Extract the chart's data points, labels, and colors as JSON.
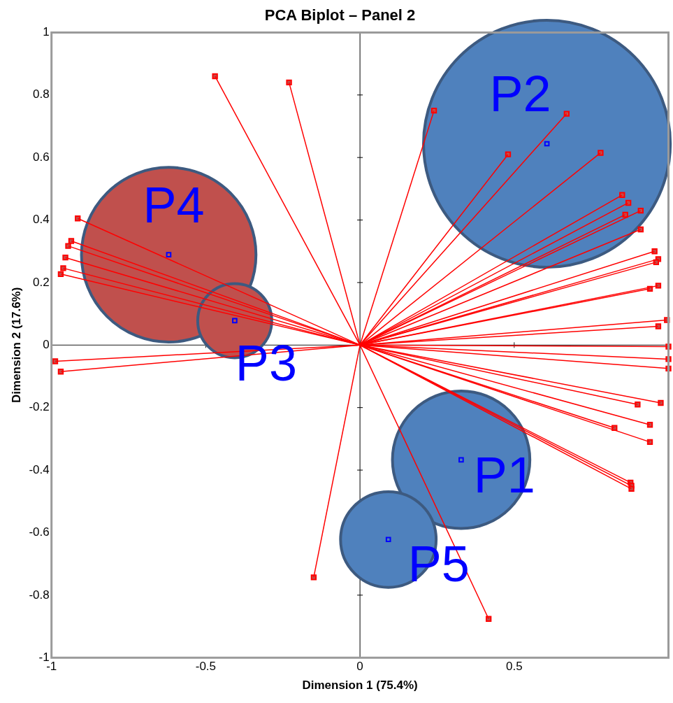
{
  "chart_data": {
    "type": "scatter",
    "title": "PCA Biplot – Panel 2",
    "xlabel": "Dimension 1 (75.4%)",
    "ylabel": "Dimension 2 (17.6%)",
    "xlim": [
      -1,
      1
    ],
    "ylim": [
      -1,
      1
    ],
    "xticks": [
      -1,
      -0.5,
      0,
      0.5
    ],
    "yticks": [
      -1,
      -0.8,
      -0.6,
      -0.4,
      -0.2,
      0,
      0.2,
      0.4,
      0.6,
      0.8,
      1
    ],
    "grid": false,
    "legend": false,
    "ref_lines": [
      {
        "axis": "x",
        "value": 0,
        "color": "#000000"
      },
      {
        "axis": "y",
        "value": 0,
        "color": "#1a1a1a"
      }
    ],
    "series": [
      {
        "type": "bubble",
        "colors": [
          "#4f81bd",
          "#4f81bd",
          "#c0504d",
          "#c0504d",
          "#4f81bd"
        ],
        "x": [
          0.606,
          0.328,
          -0.62,
          -0.406,
          0.092
        ],
        "values": [
          0.644,
          -0.367,
          0.289,
          0.078,
          -0.622
        ],
        "sizes": [
          1,
          0.31,
          0.5,
          0.09,
          0.15
        ]
      },
      {
        "marker": "square",
        "color": "#ff0000",
        "x": [
          -0.47,
          -0.23,
          0.24,
          0.67,
          0.48,
          0.78,
          0.85,
          0.87,
          0.86,
          0.91,
          0.91,
          0.955,
          0.967,
          0.96,
          0.967,
          0.94,
          0.967,
          0.995,
          1.0,
          1.0,
          1.0,
          0.9,
          0.975,
          0.94,
          0.825,
          0.94,
          0.877,
          0.88,
          0.88,
          -0.915,
          -0.936,
          -0.946,
          -0.955,
          -0.962,
          -0.97,
          -0.988,
          -0.97,
          -0.15,
          0.417
        ],
        "values": [
          0.86,
          0.84,
          0.75,
          0.74,
          0.61,
          0.615,
          0.48,
          0.455,
          0.417,
          0.43,
          0.37,
          0.3,
          0.275,
          0.265,
          0.19,
          0.18,
          0.06,
          0.08,
          -0.005,
          -0.045,
          -0.075,
          -0.19,
          -0.185,
          -0.255,
          -0.265,
          -0.31,
          -0.44,
          -0.45,
          -0.46,
          0.405,
          0.333,
          0.317,
          0.28,
          0.246,
          0.227,
          -0.052,
          -0.085,
          -0.743,
          -0.876
        ]
      },
      {
        "marker": "square",
        "color": "#0000ff",
        "x": [
          0.606,
          0.328,
          -0.62,
          -0.406,
          0.092
        ],
        "values": [
          0.644,
          -0.367,
          0.289,
          0.078,
          -0.622
        ]
      }
    ],
    "annotations": [
      {
        "text": "P2",
        "x": 0.606,
        "y": 0.644
      },
      {
        "text": "P1",
        "x": 0.328,
        "y": -0.367
      },
      {
        "text": "P4",
        "x": -0.62,
        "y": 0.289
      },
      {
        "text": "P3",
        "x": -0.406,
        "y": 0.078
      },
      {
        "text": "P5",
        "x": 0.092,
        "y": -0.622
      }
    ]
  }
}
